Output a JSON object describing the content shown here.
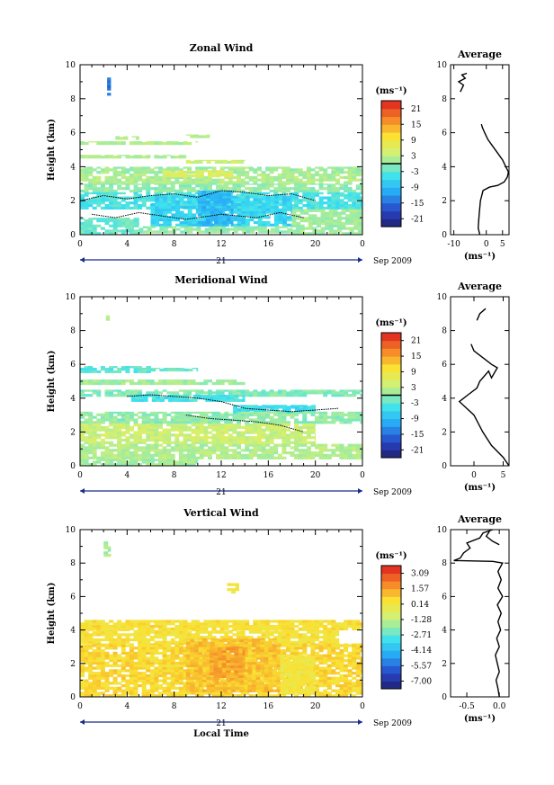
{
  "chart_data": [
    {
      "type": "heatmap",
      "title": "Zonal Wind",
      "ylabel": "Height (km)",
      "ylim": [
        0,
        10
      ],
      "xlim": [
        0,
        24
      ],
      "x_ticks": [
        "0",
        "4",
        "8",
        "12",
        "16",
        "20",
        "0"
      ],
      "y_ticks": [
        "0",
        "2",
        "4",
        "6",
        "8",
        "10"
      ],
      "date_day": "21",
      "date_label": "Sep 2009",
      "colorbar": {
        "unit": "(ms⁻¹)",
        "ticks": [
          "21",
          "15",
          "9",
          "3",
          "-3",
          "-9",
          "-15",
          "-21"
        ],
        "min": -24,
        "max": 24,
        "zero_line": 0
      },
      "average_profile": {
        "title": "Average",
        "xlabel": "(ms⁻¹)",
        "x_ticks": [
          "-10",
          "0",
          "5"
        ],
        "xlim": [
          -11,
          7
        ],
        "y_ticks": [
          "0",
          "2",
          "4",
          "6",
          "8",
          "10"
        ],
        "segments": [
          [
            [
              -2,
              0
            ],
            [
              -2.5,
              0.4
            ],
            [
              -2.2,
              1.2
            ],
            [
              -1.8,
              2.0
            ],
            [
              -1,
              2.6
            ],
            [
              1,
              2.8
            ],
            [
              3.5,
              2.9
            ],
            [
              5.5,
              3.1
            ],
            [
              6.5,
              3.4
            ],
            [
              6.8,
              3.7
            ],
            [
              6,
              4.0
            ],
            [
              5,
              4.4
            ],
            [
              3.5,
              4.8
            ],
            [
              2,
              5.2
            ],
            [
              0.5,
              5.6
            ],
            [
              -0.5,
              6.0
            ],
            [
              -1.2,
              6.3
            ],
            [
              -1.5,
              6.5
            ]
          ],
          [
            [
              -8,
              8.4
            ],
            [
              -7,
              8.8
            ],
            [
              -8.5,
              9.0
            ],
            [
              -6.5,
              9.2
            ],
            [
              -7.5,
              9.4
            ],
            [
              -6,
              9.5
            ]
          ]
        ]
      },
      "regions": [
        {
          "t": [
            2.3,
            2.6
          ],
          "h": [
            8.2,
            9.3
          ],
          "v": -14
        },
        {
          "t": [
            0,
            10
          ],
          "h": [
            5.3,
            5.5
          ],
          "v": 2
        },
        {
          "t": [
            3,
            5
          ],
          "h": [
            5.6,
            5.8
          ],
          "v": 3
        },
        {
          "t": [
            9,
            11
          ],
          "h": [
            5.7,
            5.9
          ],
          "v": 3
        },
        {
          "t": [
            0,
            9
          ],
          "h": [
            4.5,
            4.7
          ],
          "v": 2
        },
        {
          "t": [
            9,
            14
          ],
          "h": [
            4.2,
            4.4
          ],
          "v": 4
        },
        {
          "t": [
            0,
            24
          ],
          "h": [
            3.6,
            4.0
          ],
          "v": 1
        },
        {
          "t": [
            0,
            24
          ],
          "h": [
            3.0,
            3.6
          ],
          "v": 2
        },
        {
          "t": [
            7,
            13
          ],
          "h": [
            3.4,
            3.8
          ],
          "v": 6
        },
        {
          "t": [
            0,
            24
          ],
          "h": [
            2.5,
            3.0
          ],
          "v": 0
        },
        {
          "t": [
            0,
            24
          ],
          "h": [
            1.5,
            2.5
          ],
          "v": -4
        },
        {
          "t": [
            6,
            18
          ],
          "h": [
            0.5,
            2.3
          ],
          "v": -6
        },
        {
          "t": [
            10,
            13
          ],
          "h": [
            0.5,
            2.6
          ],
          "v": -9
        },
        {
          "t": [
            0,
            5
          ],
          "h": [
            0,
            1.0
          ],
          "v": -2
        },
        {
          "t": [
            5,
            18
          ],
          "h": [
            0.1,
            0.5
          ],
          "v": 0
        },
        {
          "t": [
            18,
            24
          ],
          "h": [
            0,
            1.5
          ],
          "v": 1
        }
      ],
      "contours": [
        [
          [
            0,
            2.0
          ],
          [
            2,
            2.3
          ],
          [
            4,
            2.1
          ],
          [
            6,
            2.3
          ],
          [
            8,
            2.4
          ],
          [
            10,
            2.2
          ],
          [
            12,
            2.6
          ],
          [
            14,
            2.5
          ],
          [
            16,
            2.3
          ],
          [
            18,
            2.4
          ],
          [
            20,
            2.0
          ]
        ],
        [
          [
            1,
            1.2
          ],
          [
            3,
            1.0
          ],
          [
            5,
            1.3
          ],
          [
            7,
            1.1
          ],
          [
            9,
            0.9
          ],
          [
            12,
            1.2
          ],
          [
            15,
            1.0
          ],
          [
            17,
            1.3
          ],
          [
            19,
            1.0
          ]
        ]
      ]
    },
    {
      "type": "heatmap",
      "title": "Meridional Wind",
      "ylabel": "Height (km)",
      "ylim": [
        0,
        10
      ],
      "xlim": [
        0,
        24
      ],
      "x_ticks": [
        "0",
        "4",
        "8",
        "12",
        "16",
        "20",
        "0"
      ],
      "y_ticks": [
        "0",
        "2",
        "4",
        "6",
        "8",
        "10"
      ],
      "date_day": "21",
      "date_label": "Sep 2009",
      "colorbar": {
        "unit": "(ms⁻¹)",
        "ticks": [
          "21",
          "15",
          "9",
          "3",
          "-3",
          "-9",
          "-15",
          "-21"
        ],
        "min": -24,
        "max": 24,
        "zero_line": 0
      },
      "average_profile": {
        "title": "Average",
        "xlabel": "(ms⁻¹)",
        "x_ticks": [
          "0",
          "5"
        ],
        "xlim": [
          -4,
          6
        ],
        "y_ticks": [
          "0",
          "2",
          "4",
          "6",
          "8",
          "10"
        ],
        "segments": [
          [
            [
              6,
              0
            ],
            [
              5,
              0.5
            ],
            [
              3,
              1.2
            ],
            [
              1.5,
              2.0
            ],
            [
              0,
              3.0
            ],
            [
              -2.5,
              3.8
            ],
            [
              -1,
              4.2
            ],
            [
              0.5,
              4.6
            ],
            [
              1,
              5.0
            ],
            [
              2.5,
              5.6
            ],
            [
              3,
              5.2
            ],
            [
              4,
              5.8
            ],
            [
              3,
              6.0
            ],
            [
              1.5,
              6.4
            ],
            [
              0,
              6.8
            ],
            [
              -0.5,
              7.2
            ]
          ],
          [
            [
              0.5,
              8.6
            ],
            [
              1,
              9.0
            ],
            [
              2,
              9.3
            ]
          ]
        ]
      },
      "regions": [
        {
          "t": [
            2.2,
            2.5
          ],
          "h": [
            8.6,
            8.9
          ],
          "v": 3
        },
        {
          "t": [
            0,
            6
          ],
          "h": [
            5.5,
            5.9
          ],
          "v": -3
        },
        {
          "t": [
            5,
            10
          ],
          "h": [
            5.6,
            5.8
          ],
          "v": -2
        },
        {
          "t": [
            0,
            14
          ],
          "h": [
            4.8,
            5.1
          ],
          "v": 1
        },
        {
          "t": [
            0,
            24
          ],
          "h": [
            4.1,
            4.5
          ],
          "v": -1
        },
        {
          "t": [
            4,
            14
          ],
          "h": [
            3.8,
            4.2
          ],
          "v": -4
        },
        {
          "t": [
            13,
            20
          ],
          "h": [
            3.1,
            3.6
          ],
          "v": -5
        },
        {
          "t": [
            0,
            24
          ],
          "h": [
            2.5,
            3.2
          ],
          "v": 0
        },
        {
          "t": [
            0,
            20
          ],
          "h": [
            1.3,
            2.5
          ],
          "v": 4
        },
        {
          "t": [
            0,
            24
          ],
          "h": [
            0.4,
            1.3
          ],
          "v": 2
        },
        {
          "t": [
            0,
            10
          ],
          "h": [
            0,
            0.4
          ],
          "v": 1
        }
      ],
      "contours": [
        [
          [
            4,
            4.1
          ],
          [
            6,
            4.2
          ],
          [
            8,
            4.1
          ],
          [
            10,
            4.0
          ],
          [
            12,
            3.8
          ],
          [
            14,
            3.4
          ],
          [
            16,
            3.3
          ],
          [
            18,
            3.2
          ],
          [
            20,
            3.3
          ],
          [
            22,
            3.4
          ]
        ],
        [
          [
            9,
            3.0
          ],
          [
            11,
            2.8
          ],
          [
            13,
            2.7
          ],
          [
            15,
            2.6
          ],
          [
            17,
            2.4
          ],
          [
            19,
            2.0
          ]
        ]
      ]
    },
    {
      "type": "heatmap",
      "title": "Vertical Wind",
      "xlabel": "Local Time",
      "ylabel": "Height (km)",
      "ylim": [
        0,
        10
      ],
      "xlim": [
        0,
        24
      ],
      "x_ticks": [
        "0",
        "4",
        "8",
        "12",
        "16",
        "20",
        "0"
      ],
      "y_ticks": [
        "0",
        "2",
        "4",
        "6",
        "8",
        "10"
      ],
      "date_day": "21",
      "date_label": "Sep 2009",
      "colorbar": {
        "unit": "(ms⁻¹)",
        "ticks": [
          "3.09",
          "1.57",
          "0.14",
          "-1.28",
          "-2.71",
          "-4.14",
          "-5.57",
          "-7.00"
        ],
        "min": -7.71,
        "max": 3.8,
        "zero_line": null
      },
      "average_profile": {
        "title": "Average",
        "xlabel": "(ms⁻¹)",
        "x_ticks": [
          "-0.5",
          "0.0"
        ],
        "xlim": [
          -0.75,
          0.15
        ],
        "y_ticks": [
          "0",
          "2",
          "4",
          "6",
          "8",
          "10"
        ],
        "segments": [
          [
            [
              0,
              0
            ],
            [
              -0.02,
              0.5
            ],
            [
              -0.05,
              1.0
            ],
            [
              0,
              1.5
            ],
            [
              -0.03,
              2.0
            ],
            [
              -0.06,
              2.5
            ],
            [
              0,
              3.0
            ],
            [
              -0.04,
              3.5
            ],
            [
              0.02,
              4.0
            ],
            [
              -0.02,
              4.5
            ],
            [
              0.03,
              5.0
            ],
            [
              -0.03,
              5.5
            ],
            [
              0.05,
              6.0
            ],
            [
              -0.02,
              6.5
            ],
            [
              0.03,
              7.0
            ],
            [
              -0.02,
              7.5
            ],
            [
              0.05,
              8.0
            ],
            [
              -0.1,
              8.1
            ],
            [
              -0.7,
              8.15
            ],
            [
              -0.6,
              8.3
            ],
            [
              -0.55,
              8.6
            ],
            [
              -0.45,
              8.9
            ],
            [
              -0.5,
              9.2
            ],
            [
              -0.3,
              9.5
            ],
            [
              -0.25,
              9.8
            ],
            [
              -0.1,
              10
            ]
          ],
          [
            [
              -0.15,
              9.9
            ],
            [
              -0.2,
              9.6
            ],
            [
              -0.1,
              9.3
            ],
            [
              0.0,
              9.1
            ]
          ]
        ]
      },
      "regions": [
        {
          "t": [
            2,
            2.6
          ],
          "h": [
            8.4,
            9.3
          ],
          "v": -1.6
        },
        {
          "t": [
            0,
            24
          ],
          "h": [
            4.0,
            4.6
          ],
          "v": 0.5
        },
        {
          "t": [
            0,
            22
          ],
          "h": [
            3.2,
            4.0
          ],
          "v": 0.4
        },
        {
          "t": [
            0,
            24
          ],
          "h": [
            0,
            3.2
          ],
          "v": 0.7
        },
        {
          "t": [
            9,
            17
          ],
          "h": [
            0.3,
            3.5
          ],
          "v": 1.1
        },
        {
          "t": [
            11,
            14
          ],
          "h": [
            1.0,
            3.0
          ],
          "v": 1.6
        },
        {
          "t": [
            17,
            20
          ],
          "h": [
            0.2,
            2.5
          ],
          "v": 0.2
        },
        {
          "t": [
            12.5,
            13.5
          ],
          "h": [
            6.2,
            6.8
          ],
          "v": 0.2
        }
      ],
      "contours": []
    }
  ]
}
